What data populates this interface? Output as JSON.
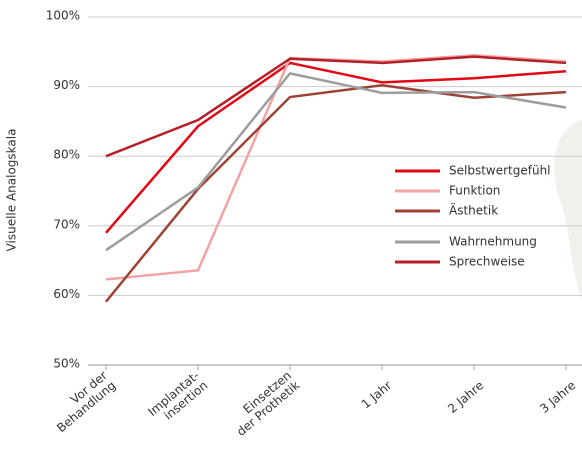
{
  "chart_data": {
    "type": "line",
    "y_label": "Visuelle Analogskala",
    "categories": [
      "Vor der\nBehandlung",
      "Implantat-\ninsertion",
      "Einsetzen\nder Prothetik",
      "1 Jahr",
      "2 Jahre",
      "3 Jahre"
    ],
    "ylim": [
      50,
      100
    ],
    "yticks": [
      {
        "value": 50,
        "label": "50%"
      },
      {
        "value": 60,
        "label": "60%"
      },
      {
        "value": 70,
        "label": "70%"
      },
      {
        "value": 80,
        "label": "80%"
      },
      {
        "value": 90,
        "label": "90%"
      },
      {
        "value": 100,
        "label": "100%"
      }
    ],
    "grid": true,
    "series": [
      {
        "name": "Selbstwertgefühl",
        "color": "#e30613",
        "values": [
          69.0,
          84.3,
          93.4,
          90.6,
          91.2,
          92.2
        ]
      },
      {
        "name": "Funktion",
        "color": "#f2a3a3",
        "values": [
          62.3,
          63.6,
          94.1,
          93.6,
          94.5,
          93.6
        ]
      },
      {
        "name": "Ästhetik",
        "color": "#9e4236",
        "values": [
          59.1,
          75.3,
          88.5,
          90.2,
          88.4,
          89.2
        ]
      },
      {
        "name": "Wahrnehmung",
        "color": "#9d9d9d",
        "values": [
          66.5,
          75.5,
          91.9,
          89.1,
          89.2,
          87.0
        ]
      },
      {
        "name": "Sprechweise",
        "color": "#b51f27",
        "values": [
          80.0,
          85.2,
          94.0,
          93.4,
          94.3,
          93.4
        ]
      }
    ]
  }
}
